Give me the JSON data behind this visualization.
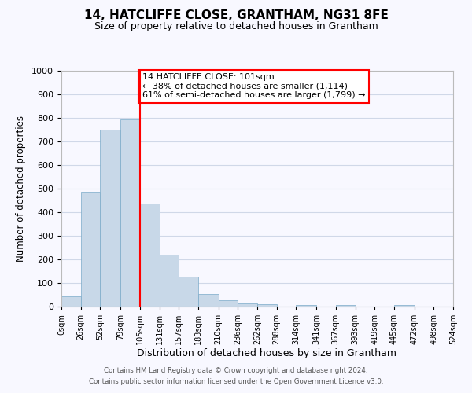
{
  "title": "14, HATCLIFFE CLOSE, GRANTHAM, NG31 8FE",
  "subtitle": "Size of property relative to detached houses in Grantham",
  "xlabel": "Distribution of detached houses by size in Grantham",
  "ylabel": "Number of detached properties",
  "bin_labels": [
    "0sqm",
    "26sqm",
    "52sqm",
    "79sqm",
    "105sqm",
    "131sqm",
    "157sqm",
    "183sqm",
    "210sqm",
    "236sqm",
    "262sqm",
    "288sqm",
    "314sqm",
    "341sqm",
    "367sqm",
    "393sqm",
    "419sqm",
    "445sqm",
    "472sqm",
    "498sqm",
    "524sqm"
  ],
  "bin_edges": [
    0,
    26,
    52,
    79,
    105,
    131,
    157,
    183,
    210,
    236,
    262,
    288,
    314,
    341,
    367,
    393,
    419,
    445,
    472,
    498,
    524
  ],
  "bar_heights": [
    43,
    487,
    750,
    793,
    438,
    220,
    128,
    52,
    27,
    15,
    10,
    0,
    7,
    0,
    7,
    0,
    0,
    7,
    0,
    0
  ],
  "bar_color": "#c8d8e8",
  "bar_edge_color": "#7aaac8",
  "grid_color": "#d0d8e8",
  "vertical_line_x": 105,
  "vline_color": "red",
  "annotation_text": "14 HATCLIFFE CLOSE: 101sqm\n← 38% of detached houses are smaller (1,114)\n61% of semi-detached houses are larger (1,799) →",
  "annotation_box_color": "white",
  "annotation_box_edge": "red",
  "ylim": [
    0,
    1000
  ],
  "yticks": [
    0,
    100,
    200,
    300,
    400,
    500,
    600,
    700,
    800,
    900,
    1000
  ],
  "footer1": "Contains HM Land Registry data © Crown copyright and database right 2024.",
  "footer2": "Contains public sector information licensed under the Open Government Licence v3.0.",
  "bg_color": "#f8f8ff"
}
